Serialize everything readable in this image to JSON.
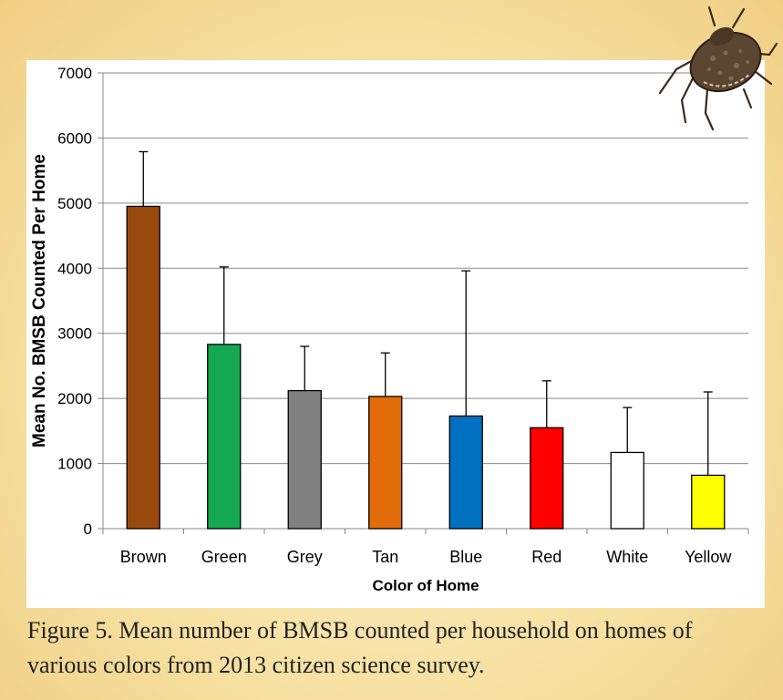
{
  "chart_data": {
    "type": "bar",
    "categories": [
      "Brown",
      "Green",
      "Grey",
      "Tan",
      "Blue",
      "Red",
      "White",
      "Yellow"
    ],
    "values": [
      4950,
      2830,
      2120,
      2030,
      1730,
      1550,
      1170,
      820
    ],
    "error_upper": [
      5790,
      4020,
      2800,
      2700,
      3960,
      2270,
      1860,
      2100
    ],
    "bar_colors": [
      "#9a4a0e",
      "#14a850",
      "#808080",
      "#e36c0a",
      "#0070c0",
      "#ff0000",
      "#ffffff",
      "#ffff00"
    ],
    "xlabel": "Color of Home",
    "ylabel": "Mean No. BMSB Counted Per Home",
    "ylim": [
      0,
      7000
    ],
    "yticks": [
      0,
      1000,
      2000,
      3000,
      4000,
      5000,
      6000,
      7000
    ],
    "ytick_labels": [
      "0",
      "1000",
      "2000",
      "3000",
      "4000",
      "5000",
      "6000",
      "7000"
    ],
    "grid": true,
    "legend": "none"
  },
  "caption": "Figure 5. Mean number of BMSB counted per household on homes of various colors from 2013 citizen science survey.",
  "decoration": {
    "bug_icon": "stink-bug-icon"
  }
}
